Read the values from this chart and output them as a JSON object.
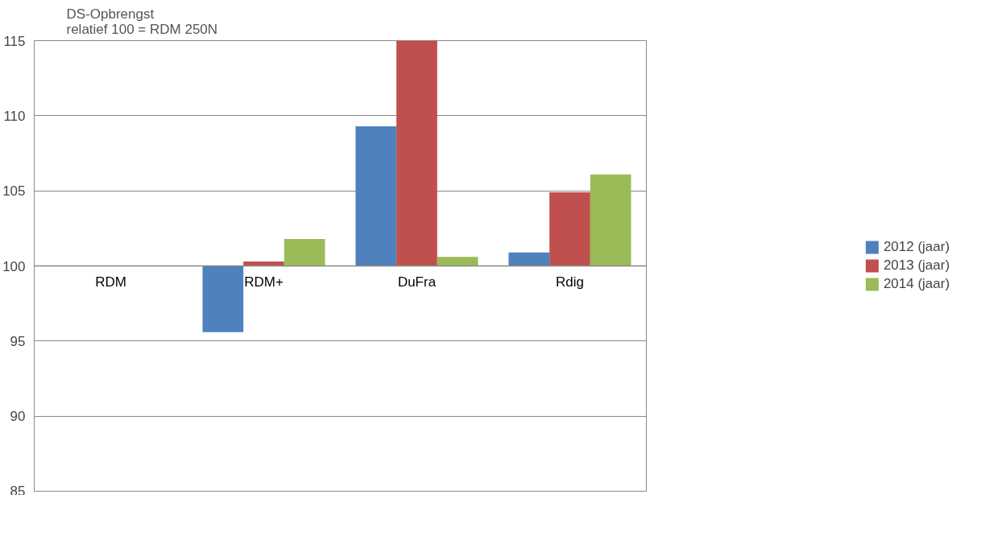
{
  "chart_data": {
    "type": "bar",
    "ylabel": "DS-Opbrengst\nrelatief 100 = RDM 250N",
    "categories": [
      "RDM",
      "RDM+",
      "DuFra",
      "Rdig"
    ],
    "series": [
      {
        "name": "2012 (jaar)",
        "color": "#4f81bd",
        "values": [
          null,
          -4.4,
          9.3,
          0.9
        ],
        "base": [
          null,
          100,
          100,
          100
        ]
      },
      {
        "name": "2013 (jaar)",
        "color": "#c0504d",
        "values": [
          null,
          0.3,
          15.1,
          4.9
        ],
        "base": [
          null,
          100,
          100,
          100
        ]
      },
      {
        "name": "2014 (jaar)",
        "color": "#9bbb59",
        "values": [
          null,
          1.8,
          0.6,
          6.1
        ],
        "base": [
          null,
          100,
          100,
          100
        ]
      }
    ],
    "ylim": [
      85,
      115
    ],
    "yticks": [
      85,
      90,
      95,
      100,
      105,
      110,
      115
    ],
    "grid": "y",
    "legend": "right"
  }
}
